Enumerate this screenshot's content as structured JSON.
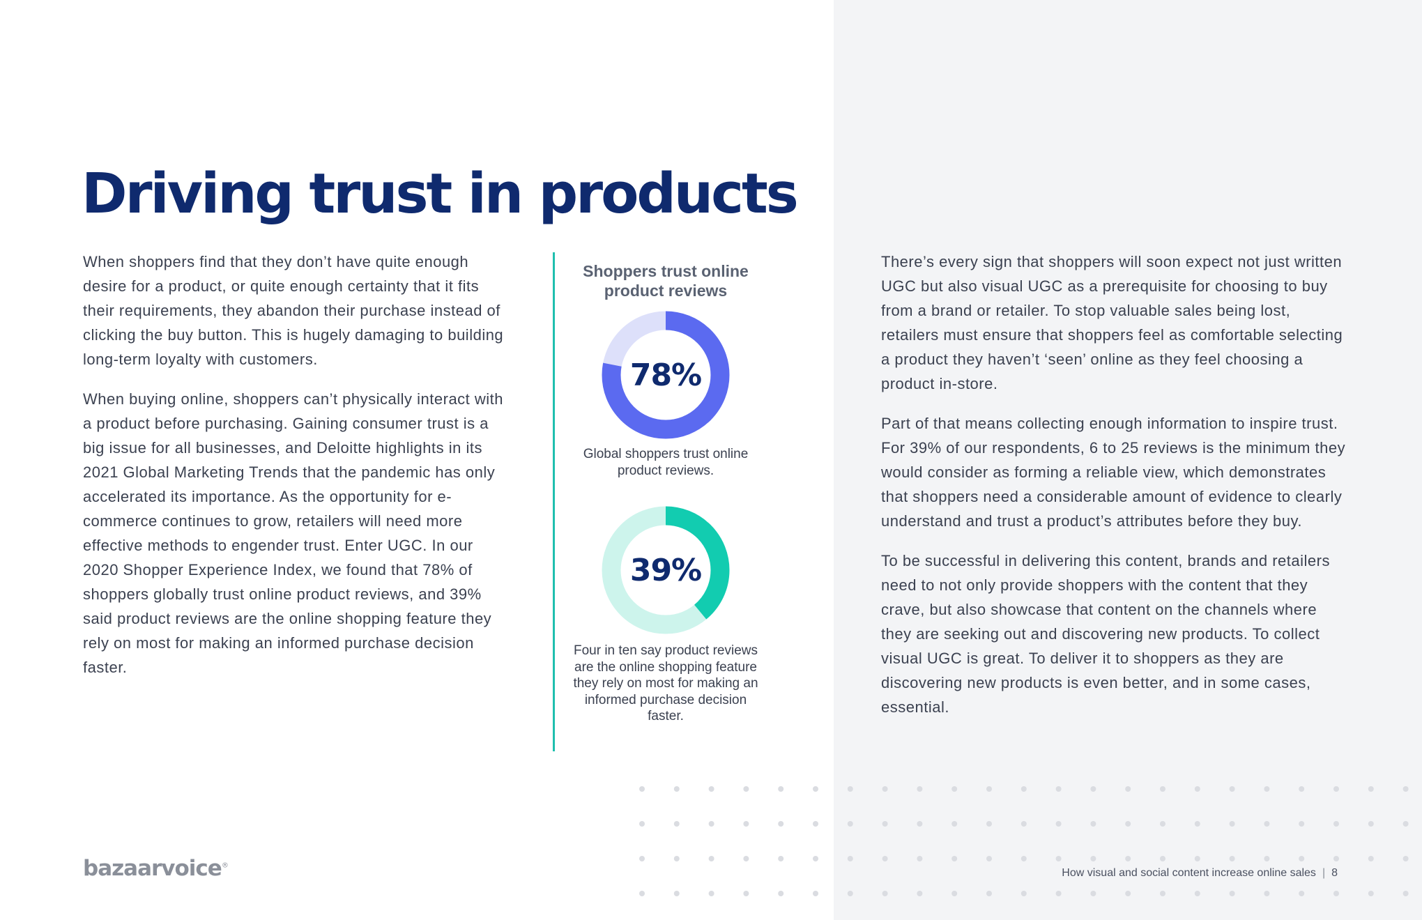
{
  "title": "Driving trust in products",
  "left_column": {
    "paragraphs": [
      "When shoppers find that they don’t have quite enough desire for a product, or quite enough certainty that it fits their requirements, they abandon their purchase instead of clicking the buy button. This is hugely damaging to building long-term loyalty with customers.",
      "When buying online, shoppers can’t physically interact with a product before purchasing. Gaining consumer trust is a big issue for all businesses, and Deloitte highlights in its 2021 Global Marketing Trends that the pandemic has only accelerated its importance.  As the opportunity for e-commerce continues to grow, retailers will need more effective methods to engender trust. Enter UGC. In our 2020 Shopper Experience Index, we found that 78% of shoppers globally trust online product reviews, and 39% said product reviews are the online shopping feature they rely on most for making an informed purchase decision faster."
    ]
  },
  "stats": {
    "heading": "Shoppers trust online product reviews",
    "items": [
      {
        "value_label": "78%",
        "fraction": 0.78,
        "caption": "Global shoppers trust online product reviews.",
        "fill_color": "#5b6af0",
        "track_color": "#dde0fa"
      },
      {
        "value_label": "39%",
        "fraction": 0.39,
        "caption": "Four in ten say product reviews are the online shopping feature they rely on most for making an informed purchase decision faster.",
        "fill_color": "#12ccb0",
        "track_color": "#cdf4ec"
      }
    ]
  },
  "right_column": {
    "paragraphs": [
      "There’s every sign that shoppers will soon expect not just written UGC but also visual UGC as a prerequisite for choosing to buy from a brand or retailer. To stop valuable sales being lost, retailers must ensure that shoppers feel as comfortable selecting a product they haven’t ‘seen’ online as they feel choosing a product in-store.",
      "Part of that means collecting enough information to inspire trust. For 39% of our respondents, 6 to 25 reviews is the minimum they would consider as forming a reliable view, which demonstrates that shoppers need a considerable amount of evidence to clearly understand and trust a product’s attributes before they buy.",
      "To be successful in delivering this content, brands and retailers need to not only provide shoppers with the content that they crave, but also showcase that content on the channels where they are seeking out and discovering new products. To collect visual UGC is great. To deliver it to shoppers as they are discovering new products is even better, and in some cases, essential."
    ]
  },
  "footer": {
    "logo_text": "bazaarvoice",
    "logo_mark": "®",
    "document_title": "How visual and social content increase online sales",
    "separator": "|",
    "page_number": "8"
  },
  "colors": {
    "title": "#0f2a6e",
    "divider": "#1fbfae",
    "right_panel_bg": "#f3f4f6",
    "dot": "#dadce1"
  }
}
